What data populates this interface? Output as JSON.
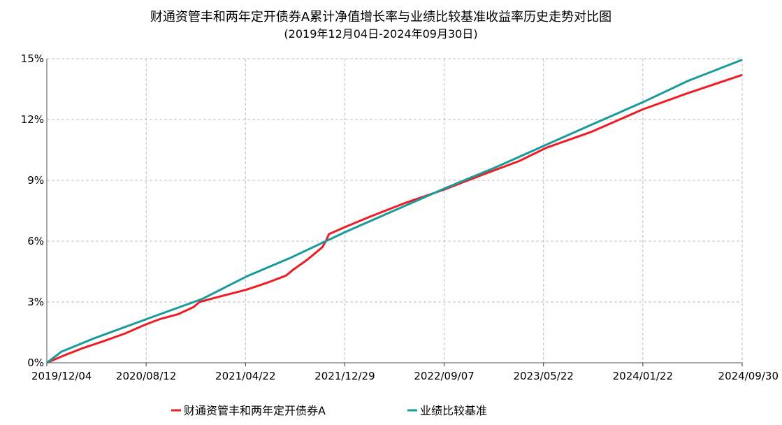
{
  "chart_data": {
    "type": "line",
    "title": "财通资管丰和两年定开债券A累计净值增长率与业绩比较基准收益率历史走势对比图",
    "subtitle": "(2019年12月04日-2024年09月30日)",
    "xlabel": "",
    "ylabel": "",
    "x_range": [
      "2019-12-04",
      "2024-09-30"
    ],
    "x_ticks": [
      "2019/12/04",
      "2020/08/12",
      "2021/04/22",
      "2021/12/29",
      "2022/09/07",
      "2023/05/22",
      "2024/01/22",
      "2024/09/30"
    ],
    "ylim": [
      0,
      15
    ],
    "y_ticks": [
      0,
      3,
      6,
      9,
      12,
      15
    ],
    "y_tick_labels": [
      "0%",
      "3%",
      "6%",
      "9%",
      "12%",
      "15%"
    ],
    "grid": true,
    "legend_position": "bottom",
    "series": [
      {
        "name": "财通资管丰和两年定开债券A",
        "color": "#ee1c24",
        "points": [
          [
            "2019-12-04",
            0.0
          ],
          [
            "2020-01-15",
            0.35
          ],
          [
            "2020-03-01",
            0.7
          ],
          [
            "2020-05-01",
            1.1
          ],
          [
            "2020-06-20",
            1.45
          ],
          [
            "2020-08-12",
            1.9
          ],
          [
            "2020-09-15",
            2.15
          ],
          [
            "2020-11-01",
            2.4
          ],
          [
            "2020-12-10",
            2.75
          ],
          [
            "2020-12-25",
            3.0
          ],
          [
            "2021-02-01",
            3.2
          ],
          [
            "2021-04-22",
            3.6
          ],
          [
            "2021-06-15",
            3.95
          ],
          [
            "2021-08-01",
            4.3
          ],
          [
            "2021-08-20",
            4.6
          ],
          [
            "2021-09-25",
            5.1
          ],
          [
            "2021-11-01",
            5.7
          ],
          [
            "2021-11-10",
            6.0
          ],
          [
            "2021-11-18",
            6.35
          ],
          [
            "2021-12-29",
            6.7
          ],
          [
            "2022-03-01",
            7.2
          ],
          [
            "2022-06-01",
            7.9
          ],
          [
            "2022-09-07",
            8.55
          ],
          [
            "2022-12-15",
            9.3
          ],
          [
            "2023-03-15",
            9.95
          ],
          [
            "2023-05-22",
            10.6
          ],
          [
            "2023-09-15",
            11.4
          ],
          [
            "2024-01-22",
            12.5
          ],
          [
            "2024-05-15",
            13.3
          ],
          [
            "2024-09-30",
            14.2
          ]
        ]
      },
      {
        "name": "业绩比较基准",
        "color": "#1a9a9a",
        "points": [
          [
            "2019-12-04",
            0.0
          ],
          [
            "2020-01-10",
            0.55
          ],
          [
            "2020-04-01",
            1.2
          ],
          [
            "2020-08-12",
            2.15
          ],
          [
            "2021-01-01",
            3.15
          ],
          [
            "2021-04-22",
            4.25
          ],
          [
            "2021-08-15",
            5.2
          ],
          [
            "2021-12-29",
            6.45
          ],
          [
            "2022-05-01",
            7.5
          ],
          [
            "2022-09-07",
            8.6
          ],
          [
            "2023-01-15",
            9.65
          ],
          [
            "2023-05-22",
            10.75
          ],
          [
            "2023-09-15",
            11.75
          ],
          [
            "2024-01-22",
            12.85
          ],
          [
            "2024-05-15",
            13.9
          ],
          [
            "2024-09-30",
            14.95
          ]
        ]
      }
    ]
  }
}
